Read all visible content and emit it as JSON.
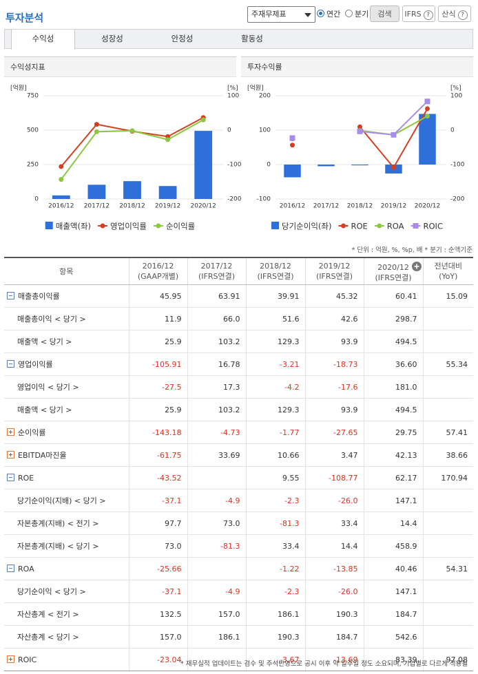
{
  "header": {
    "title": "투자분석",
    "select": "주재무제표",
    "radios": [
      {
        "label": "연간",
        "checked": true
      },
      {
        "label": "분기",
        "checked": false
      }
    ],
    "buttons": [
      "검색",
      "IFRS",
      "산식"
    ]
  },
  "tabs": {
    "items": [
      "수익성",
      "성장성",
      "안정성",
      "활동성"
    ],
    "active": 0
  },
  "chart_data": [
    {
      "type": "combo",
      "title": "수익성지표",
      "y_unit": "[억원]",
      "y2_unit": "[%]",
      "categories": [
        "2016/12",
        "2017/12",
        "2018/12",
        "2019/12",
        "2020/12"
      ],
      "ylim": [
        0,
        750
      ],
      "yticks": [
        0,
        250,
        500,
        750
      ],
      "y2lim": [
        -200,
        100
      ],
      "y2ticks": [
        -200,
        -100,
        0,
        100
      ],
      "grid": true,
      "series": [
        {
          "name": "매출액(좌)",
          "type": "bar",
          "color": "#2e6fd9",
          "values": [
            25.9,
            103.2,
            129.3,
            93.9,
            494.5
          ]
        },
        {
          "name": "영업이익률",
          "type": "line",
          "marker": "circle",
          "axis": "y2",
          "color": "#d4401f",
          "values": [
            -105.91,
            16.78,
            -3.21,
            -18.73,
            36.6
          ]
        },
        {
          "name": "순이익률",
          "type": "line",
          "marker": "circle",
          "axis": "y2",
          "color": "#8dc63f",
          "values": [
            -143.18,
            -4.73,
            -1.77,
            -27.65,
            29.75
          ]
        }
      ]
    },
    {
      "type": "combo",
      "title": "투자수익률",
      "y_unit": "[억원]",
      "y2_unit": "[%]",
      "categories": [
        "2016/12",
        "2017/12",
        "2018/12",
        "2019/12",
        "2020/12"
      ],
      "ylim": [
        -100,
        200
      ],
      "yticks": [
        -100,
        0,
        100,
        200
      ],
      "y2lim": [
        -200,
        100
      ],
      "y2ticks": [
        -200,
        -100,
        0,
        100
      ],
      "grid": true,
      "series": [
        {
          "name": "당기순이익(좌)",
          "type": "bar",
          "color": "#2e6fd9",
          "values": [
            -37.1,
            -4.9,
            -2.3,
            -26.0,
            147.1
          ]
        },
        {
          "name": "ROE",
          "type": "line",
          "marker": "circle",
          "axis": "y2",
          "color": "#d4401f",
          "values": [
            -43.52,
            null,
            9.55,
            -108.77,
            62.17
          ]
        },
        {
          "name": "ROA",
          "type": "line",
          "marker": "circle",
          "axis": "y2",
          "color": "#8dc63f",
          "values": [
            -25.66,
            null,
            -1.22,
            -13.85,
            40.46
          ]
        },
        {
          "name": "ROIC",
          "type": "line",
          "marker": "square",
          "axis": "y2",
          "color": "#a98ce8",
          "values": [
            -23.04,
            null,
            -3.67,
            -13.69,
            83.39
          ]
        }
      ]
    }
  ],
  "table": {
    "note": "* 단위 : 억원, %, %p, 배   * 분기 : 순액기준",
    "item_header": "항목",
    "columns": [
      {
        "period": "2016/12",
        "basis": "(GAAP개별)"
      },
      {
        "period": "2017/12",
        "basis": "(IFRS연결)"
      },
      {
        "period": "2018/12",
        "basis": "(IFRS연결)"
      },
      {
        "period": "2019/12",
        "basis": "(IFRS연결)"
      },
      {
        "period": "2020/12",
        "basis": "(IFRS연결)"
      },
      {
        "period": "전년대비",
        "basis": "(YoY)"
      }
    ],
    "rows": [
      {
        "label": "매출총이익률",
        "expanded": true,
        "values": [
          "45.95",
          "63.91",
          "39.91",
          "45.32",
          "60.41",
          "15.09"
        ]
      },
      {
        "label": "매출총이익 < 당기 >",
        "values": [
          "11.9",
          "66.0",
          "51.6",
          "42.6",
          "298.7",
          null
        ]
      },
      {
        "label": "매출액 < 당기 >",
        "values": [
          "25.9",
          "103.2",
          "129.3",
          "93.9",
          "494.5",
          null
        ]
      },
      {
        "label": "영업이익률",
        "expanded": true,
        "values": [
          "-105.91",
          "16.78",
          "-3.21",
          "-18.73",
          "36.60",
          "55.34"
        ]
      },
      {
        "label": "영업이익 < 당기 >",
        "values": [
          "-27.5",
          "17.3",
          "-4.2",
          "-17.6",
          "181.0",
          null
        ]
      },
      {
        "label": "매출액 < 당기 >",
        "values": [
          "25.9",
          "103.2",
          "129.3",
          "93.9",
          "494.5",
          null
        ]
      },
      {
        "label": "순이익률",
        "expanded": false,
        "values": [
          "-143.18",
          "-4.73",
          "-1.77",
          "-27.65",
          "29.75",
          "57.41"
        ]
      },
      {
        "label": "EBITDA마진율",
        "expanded": false,
        "values": [
          "-61.75",
          "33.69",
          "10.66",
          "3.47",
          "42.13",
          "38.66"
        ]
      },
      {
        "label": "ROE",
        "expanded": true,
        "values": [
          "-43.52",
          null,
          "9.55",
          "-108.77",
          "62.17",
          "170.94"
        ]
      },
      {
        "label": "당기순이익(지배) < 당기 >",
        "values": [
          "-37.1",
          "-4.9",
          "-2.3",
          "-26.0",
          "147.1",
          null
        ]
      },
      {
        "label": "자본총계(지배) < 전기 >",
        "values": [
          "97.7",
          "73.0",
          "-81.3",
          "33.4",
          "14.4",
          null
        ]
      },
      {
        "label": "자본총계(지배) < 당기 >",
        "values": [
          "73.0",
          "-81.3",
          "33.4",
          "14.4",
          "458.9",
          null
        ]
      },
      {
        "label": "ROA",
        "expanded": true,
        "values": [
          "-25.66",
          null,
          "-1.22",
          "-13.85",
          "40.46",
          "54.31"
        ]
      },
      {
        "label": "당기순이익 < 당기 >",
        "values": [
          "-37.1",
          "-4.9",
          "-2.3",
          "-26.0",
          "147.1",
          null
        ]
      },
      {
        "label": "자산총계 < 전기 >",
        "values": [
          "132.5",
          "157.0",
          "186.1",
          "190.3",
          "184.7",
          null
        ]
      },
      {
        "label": "자산총계 < 당기 >",
        "values": [
          "157.0",
          "186.1",
          "190.3",
          "184.7",
          "542.6",
          null
        ]
      },
      {
        "label": "ROIC",
        "expanded": false,
        "values": [
          "-23.04",
          null,
          "-3.67",
          "-13.69",
          "83.39",
          "97.08"
        ]
      }
    ]
  },
  "footer": "* 재무실적 업데이트는 검수 및 주석반영으로 공시 이후 약 일주일 정도 소요되며, 기업별로 다르게 적용될"
}
